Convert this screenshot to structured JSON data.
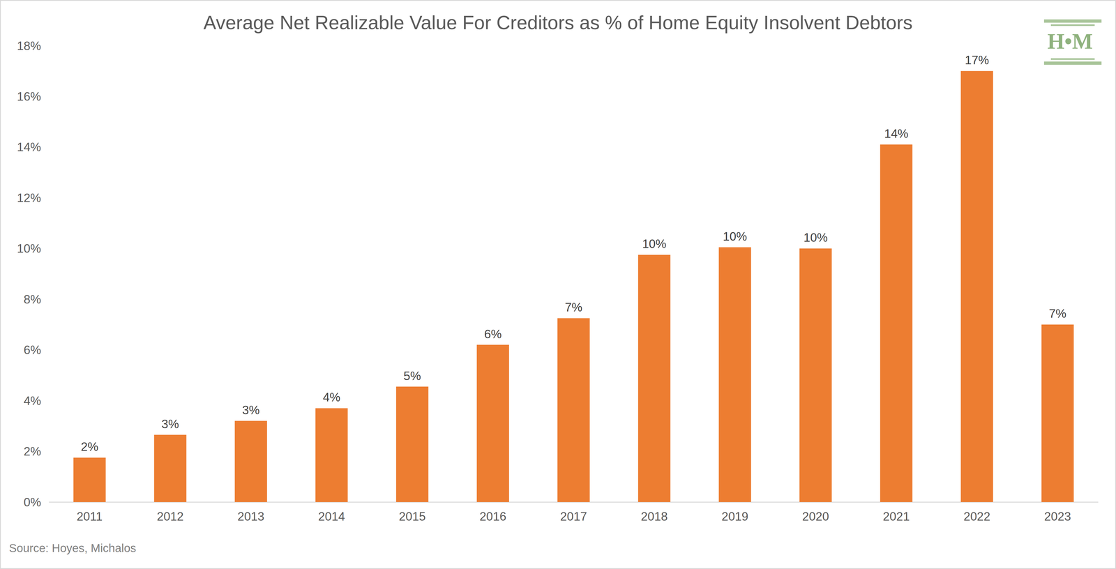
{
  "chart_data": {
    "type": "bar",
    "title": "Average Net Realizable Value For Creditors as % of Home Equity Insolvent Debtors",
    "source": "Source: Hoyes, Michalos",
    "logo": "H•M",
    "categories": [
      "2011",
      "2012",
      "2013",
      "2014",
      "2015",
      "2016",
      "2017",
      "2018",
      "2019",
      "2020",
      "2021",
      "2022",
      "2023"
    ],
    "values": [
      1.75,
      2.65,
      3.2,
      3.7,
      4.55,
      6.2,
      7.25,
      9.75,
      10.05,
      10.0,
      14.1,
      17.0,
      7.0
    ],
    "value_labels": [
      "2%",
      "3%",
      "3%",
      "4%",
      "5%",
      "6%",
      "7%",
      "10%",
      "10%",
      "10%",
      "14%",
      "17%",
      "7%"
    ],
    "color": "#ed7d31",
    "ylim": [
      0,
      18
    ],
    "yticks": [
      {
        "value": 0,
        "label": "0%"
      },
      {
        "value": 2,
        "label": "2%"
      },
      {
        "value": 4,
        "label": "4%"
      },
      {
        "value": 6,
        "label": "6%"
      },
      {
        "value": 8,
        "label": "8%"
      },
      {
        "value": 10,
        "label": "10%"
      },
      {
        "value": 12,
        "label": "12%"
      },
      {
        "value": 14,
        "label": "14%"
      },
      {
        "value": 16,
        "label": "16%"
      },
      {
        "value": 18,
        "label": "18%"
      }
    ],
    "grid": false,
    "data_labels": true
  }
}
